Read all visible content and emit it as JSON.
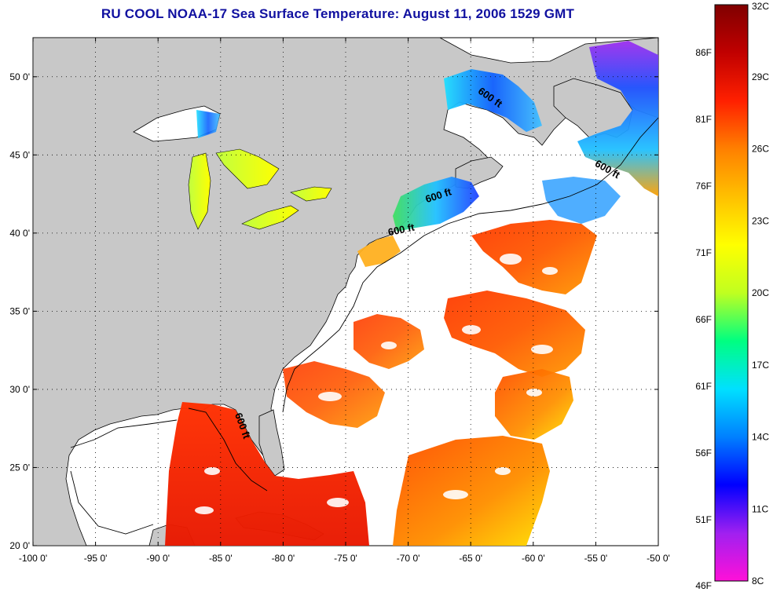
{
  "title": "RU COOL  NOAA-17  Sea Surface Temperature:  August 11, 2006 1529 GMT",
  "map": {
    "lon_range": [
      -100,
      -50
    ],
    "lat_range": [
      20,
      52.5
    ],
    "lon_ticks": [
      {
        "value": -100,
        "label": "-100 0'"
      },
      {
        "value": -95,
        "label": "-95 0'"
      },
      {
        "value": -90,
        "label": "-90 0'"
      },
      {
        "value": -85,
        "label": "-85 0'"
      },
      {
        "value": -80,
        "label": "-80 0'"
      },
      {
        "value": -75,
        "label": "-75 0'"
      },
      {
        "value": -70,
        "label": "-70 0'"
      },
      {
        "value": -65,
        "label": "-65 0'"
      },
      {
        "value": -60,
        "label": "-60 0'"
      },
      {
        "value": -55,
        "label": "-55 0'"
      },
      {
        "value": -50,
        "label": "-50 0'"
      }
    ],
    "lat_ticks": [
      {
        "value": 20,
        "label": "20 0'"
      },
      {
        "value": 25,
        "label": "25 0'"
      },
      {
        "value": 30,
        "label": "30 0'"
      },
      {
        "value": 35,
        "label": "35 0'"
      },
      {
        "value": 40,
        "label": "40 0'"
      },
      {
        "value": 45,
        "label": "45 0'"
      },
      {
        "value": 50,
        "label": "50 0'"
      }
    ],
    "grid": "dotted",
    "land_color": "#c8c8c8",
    "nodata_color": "#ffffff",
    "contour_labels": [
      {
        "text": "600 ft",
        "lon": -63.6,
        "lat": 48.5,
        "angle": 35
      },
      {
        "text": "600 ft",
        "lon": -54.2,
        "lat": 43.9,
        "angle": 30
      },
      {
        "text": "600 ft",
        "lon": -67.5,
        "lat": 42.2,
        "angle": -18
      },
      {
        "text": "600 ft",
        "lon": -70.5,
        "lat": 40.0,
        "angle": -12
      },
      {
        "text": "600 ft",
        "lon": -83.5,
        "lat": 27.6,
        "angle": 70
      }
    ]
  },
  "colorbar": {
    "celsius_labels": [
      {
        "value": 32,
        "label": "32C"
      },
      {
        "value": 29,
        "label": "29C"
      },
      {
        "value": 26,
        "label": "26C"
      },
      {
        "value": 23,
        "label": "23C"
      },
      {
        "value": 20,
        "label": "20C"
      },
      {
        "value": 17,
        "label": "17C"
      },
      {
        "value": 14,
        "label": "14C"
      },
      {
        "value": 11,
        "label": "11C"
      },
      {
        "value": 8,
        "label": "8C"
      }
    ],
    "fahrenheit_labels": [
      {
        "value": 86,
        "label": "86F"
      },
      {
        "value": 81,
        "label": "81F"
      },
      {
        "value": 76,
        "label": "76F"
      },
      {
        "value": 71,
        "label": "71F"
      },
      {
        "value": 66,
        "label": "66F"
      },
      {
        "value": 61,
        "label": "61F"
      },
      {
        "value": 56,
        "label": "56F"
      },
      {
        "value": 51,
        "label": "51F"
      },
      {
        "value": 46,
        "label": "46F"
      }
    ],
    "range_c": [
      8,
      32
    ],
    "colors": [
      "#ff10d8",
      "#a020f0",
      "#0000ff",
      "#0080ff",
      "#00e0ff",
      "#00ff80",
      "#c0ff20",
      "#ffff00",
      "#ffc000",
      "#ff8000",
      "#ff2000",
      "#c00000",
      "#800000"
    ]
  }
}
